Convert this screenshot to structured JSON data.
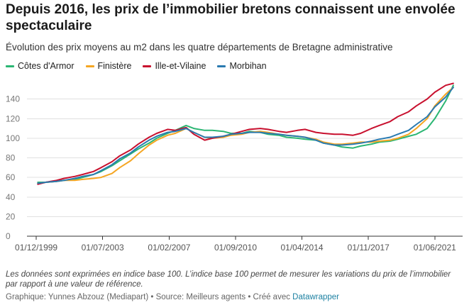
{
  "header": {
    "title": "Depuis 2016, les prix de l’immobilier bretons connaissent une envolée spectaculaire",
    "subtitle": "Évolution des prix moyens au m2 dans les quatre départements de Bretagne administrative"
  },
  "footer": {
    "note": "Les données sont exprimées en indice base 100. L’indice base 100 permet de mesurer les variations du prix de l’immobilier par rapport à une valeur de référence.",
    "credit_text": "Graphique: Yunnes Abzouz (Mediapart) • Source: Meilleurs agents • Créé avec ",
    "credit_link": "Datawrapper"
  },
  "chart_data": {
    "type": "line",
    "title": "Depuis 2016, les prix de l’immobilier bretons connaissent une envolée spectaculaire",
    "subtitle": "Évolution des prix moyens au m2 dans les quatre départements de Bretagne administrative",
    "xlabel": "",
    "ylabel": "",
    "xlim": [
      "1999-06-01",
      "2022-12-01"
    ],
    "ylim": [
      0,
      160
    ],
    "yticks": [
      0,
      20,
      40,
      60,
      80,
      100,
      120,
      140
    ],
    "xtick_labels": [
      "01/12/1999",
      "01/07/2003",
      "01/02/2007",
      "01/09/2010",
      "01/04/2014",
      "01/11/2017",
      "01/06/2021"
    ],
    "xticks": [
      "1999-12-01",
      "2003-07-01",
      "2007-02-01",
      "2010-09-01",
      "2014-04-01",
      "2017-11-01",
      "2021-06-01"
    ],
    "grid": true,
    "legend": "top",
    "series": [
      {
        "name": "Côtes d'Armor",
        "color": "#2bb673",
        "x": [
          "2000-01-01",
          "2000-06-01",
          "2001-01-01",
          "2001-06-01",
          "2002-01-01",
          "2002-06-01",
          "2003-01-01",
          "2003-06-01",
          "2004-01-01",
          "2004-06-01",
          "2005-01-01",
          "2005-06-01",
          "2006-01-01",
          "2006-06-01",
          "2007-01-01",
          "2007-06-01",
          "2008-01-01",
          "2008-06-01",
          "2009-01-01",
          "2009-06-01",
          "2010-01-01",
          "2010-06-01",
          "2011-01-01",
          "2011-06-01",
          "2012-01-01",
          "2012-06-01",
          "2013-01-01",
          "2013-06-01",
          "2014-01-01",
          "2014-06-01",
          "2015-01-01",
          "2015-06-01",
          "2016-01-01",
          "2016-06-01",
          "2017-01-01",
          "2017-06-01",
          "2018-01-01",
          "2018-06-01",
          "2019-01-01",
          "2019-06-01",
          "2020-01-01",
          "2020-06-01",
          "2021-01-01",
          "2021-06-01",
          "2022-01-01",
          "2022-06-01"
        ],
        "values": [
          55,
          55,
          56,
          57,
          58,
          60,
          63,
          66,
          72,
          77,
          84,
          89,
          95,
          100,
          105,
          108,
          113,
          110,
          108,
          108,
          107,
          105,
          105,
          107,
          106,
          104,
          103,
          101,
          100,
          99,
          98,
          95,
          93,
          91,
          90,
          92,
          94,
          96,
          97,
          99,
          102,
          104,
          110,
          120,
          138,
          154
        ]
      },
      {
        "name": "Finistère",
        "color": "#f5a623",
        "x": [
          "2000-01-01",
          "2000-06-01",
          "2001-01-01",
          "2001-06-01",
          "2002-01-01",
          "2002-06-01",
          "2003-01-01",
          "2003-06-01",
          "2004-01-01",
          "2004-06-01",
          "2005-01-01",
          "2005-06-01",
          "2006-01-01",
          "2006-06-01",
          "2007-01-01",
          "2007-06-01",
          "2008-01-01",
          "2008-06-01",
          "2009-01-01",
          "2009-06-01",
          "2010-01-01",
          "2010-06-01",
          "2011-01-01",
          "2011-06-01",
          "2012-01-01",
          "2012-06-01",
          "2013-01-01",
          "2013-06-01",
          "2014-01-01",
          "2014-06-01",
          "2015-01-01",
          "2015-06-01",
          "2016-01-01",
          "2016-06-01",
          "2017-01-01",
          "2017-06-01",
          "2018-01-01",
          "2018-06-01",
          "2019-01-01",
          "2019-06-01",
          "2020-01-01",
          "2020-06-01",
          "2021-01-01",
          "2021-06-01",
          "2022-01-01",
          "2022-06-01"
        ],
        "values": [
          54,
          55,
          56,
          57,
          57,
          58,
          59,
          60,
          64,
          70,
          77,
          84,
          93,
          98,
          103,
          105,
          110,
          106,
          101,
          100,
          101,
          103,
          104,
          106,
          107,
          106,
          104,
          103,
          102,
          101,
          99,
          96,
          94,
          94,
          95,
          96,
          96,
          97,
          98,
          100,
          104,
          110,
          120,
          133,
          145,
          152
        ]
      },
      {
        "name": "Ille-et-Vilaine",
        "color": "#c8102e",
        "x": [
          "2000-01-01",
          "2000-06-01",
          "2001-01-01",
          "2001-06-01",
          "2002-01-01",
          "2002-06-01",
          "2003-01-01",
          "2003-06-01",
          "2004-01-01",
          "2004-06-01",
          "2005-01-01",
          "2005-06-01",
          "2006-01-01",
          "2006-06-01",
          "2007-01-01",
          "2007-06-01",
          "2008-01-01",
          "2008-06-01",
          "2009-01-01",
          "2009-06-01",
          "2010-01-01",
          "2010-06-01",
          "2011-01-01",
          "2011-06-01",
          "2012-01-01",
          "2012-06-01",
          "2013-01-01",
          "2013-06-01",
          "2014-01-01",
          "2014-06-01",
          "2015-01-01",
          "2015-06-01",
          "2016-01-01",
          "2016-06-01",
          "2017-01-01",
          "2017-06-01",
          "2018-01-01",
          "2018-06-01",
          "2019-01-01",
          "2019-06-01",
          "2020-01-01",
          "2020-06-01",
          "2021-01-01",
          "2021-06-01",
          "2022-01-01",
          "2022-06-01"
        ],
        "values": [
          53,
          55,
          57,
          59,
          61,
          63,
          66,
          70,
          76,
          82,
          88,
          94,
          101,
          105,
          109,
          108,
          111,
          104,
          98,
          100,
          102,
          104,
          107,
          109,
          110,
          109,
          107,
          106,
          108,
          109,
          106,
          105,
          104,
          104,
          103,
          105,
          110,
          113,
          117,
          122,
          127,
          133,
          140,
          147,
          154,
          156
        ]
      },
      {
        "name": "Morbihan",
        "color": "#2a7ab0",
        "x": [
          "2000-01-01",
          "2000-06-01",
          "2001-01-01",
          "2001-06-01",
          "2002-01-01",
          "2002-06-01",
          "2003-01-01",
          "2003-06-01",
          "2004-01-01",
          "2004-06-01",
          "2005-01-01",
          "2005-06-01",
          "2006-01-01",
          "2006-06-01",
          "2007-01-01",
          "2007-06-01",
          "2008-01-01",
          "2008-06-01",
          "2009-01-01",
          "2009-06-01",
          "2010-01-01",
          "2010-06-01",
          "2011-01-01",
          "2011-06-01",
          "2012-01-01",
          "2012-06-01",
          "2013-01-01",
          "2013-06-01",
          "2014-01-01",
          "2014-06-01",
          "2015-01-01",
          "2015-06-01",
          "2016-01-01",
          "2016-06-01",
          "2017-01-01",
          "2017-06-01",
          "2018-01-01",
          "2018-06-01",
          "2019-01-01",
          "2019-06-01",
          "2020-01-01",
          "2020-06-01",
          "2021-01-01",
          "2021-06-01",
          "2022-01-01",
          "2022-06-01"
        ],
        "values": [
          54,
          55,
          56,
          57,
          59,
          61,
          63,
          67,
          73,
          79,
          85,
          91,
          98,
          102,
          106,
          107,
          110,
          106,
          101,
          101,
          102,
          104,
          105,
          106,
          106,
          105,
          104,
          103,
          102,
          101,
          98,
          95,
          93,
          93,
          94,
          95,
          97,
          99,
          101,
          104,
          108,
          114,
          122,
          132,
          142,
          152
        ]
      }
    ]
  }
}
